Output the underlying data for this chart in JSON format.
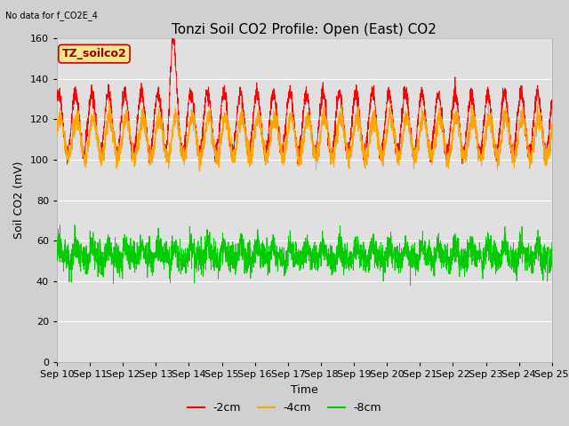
{
  "title": "Tonzi Soil CO2 Profile: Open (East) CO2",
  "subtitle": "No data for f_CO2E_4",
  "ylabel": "Soil CO2 (mV)",
  "xlabel": "Time",
  "watermark": "TZ_soilco2",
  "ylim": [
    0,
    160
  ],
  "yticks": [
    0,
    20,
    40,
    60,
    80,
    100,
    120,
    140,
    160
  ],
  "x_labels": [
    "Sep 10",
    "Sep 11",
    "Sep 12",
    "Sep 13",
    "Sep 14",
    "Sep 15",
    "Sep 16",
    "Sep 17",
    "Sep 18",
    "Sep 19",
    "Sep 20",
    "Sep 21",
    "Sep 22",
    "Sep 23",
    "Sep 24",
    "Sep 25"
  ],
  "colors": {
    "neg2cm": "#ff0000",
    "neg4cm": "#ffa500",
    "neg8cm": "#00cc00"
  },
  "legend_labels": [
    "-2cm",
    "-4cm",
    "-8cm"
  ],
  "bg_color": "#d0d0d0",
  "plot_bg": "#e0e0e0",
  "title_fontsize": 11,
  "axis_fontsize": 9,
  "tick_fontsize": 8,
  "watermark_fontsize": 9,
  "n_points": 3600
}
